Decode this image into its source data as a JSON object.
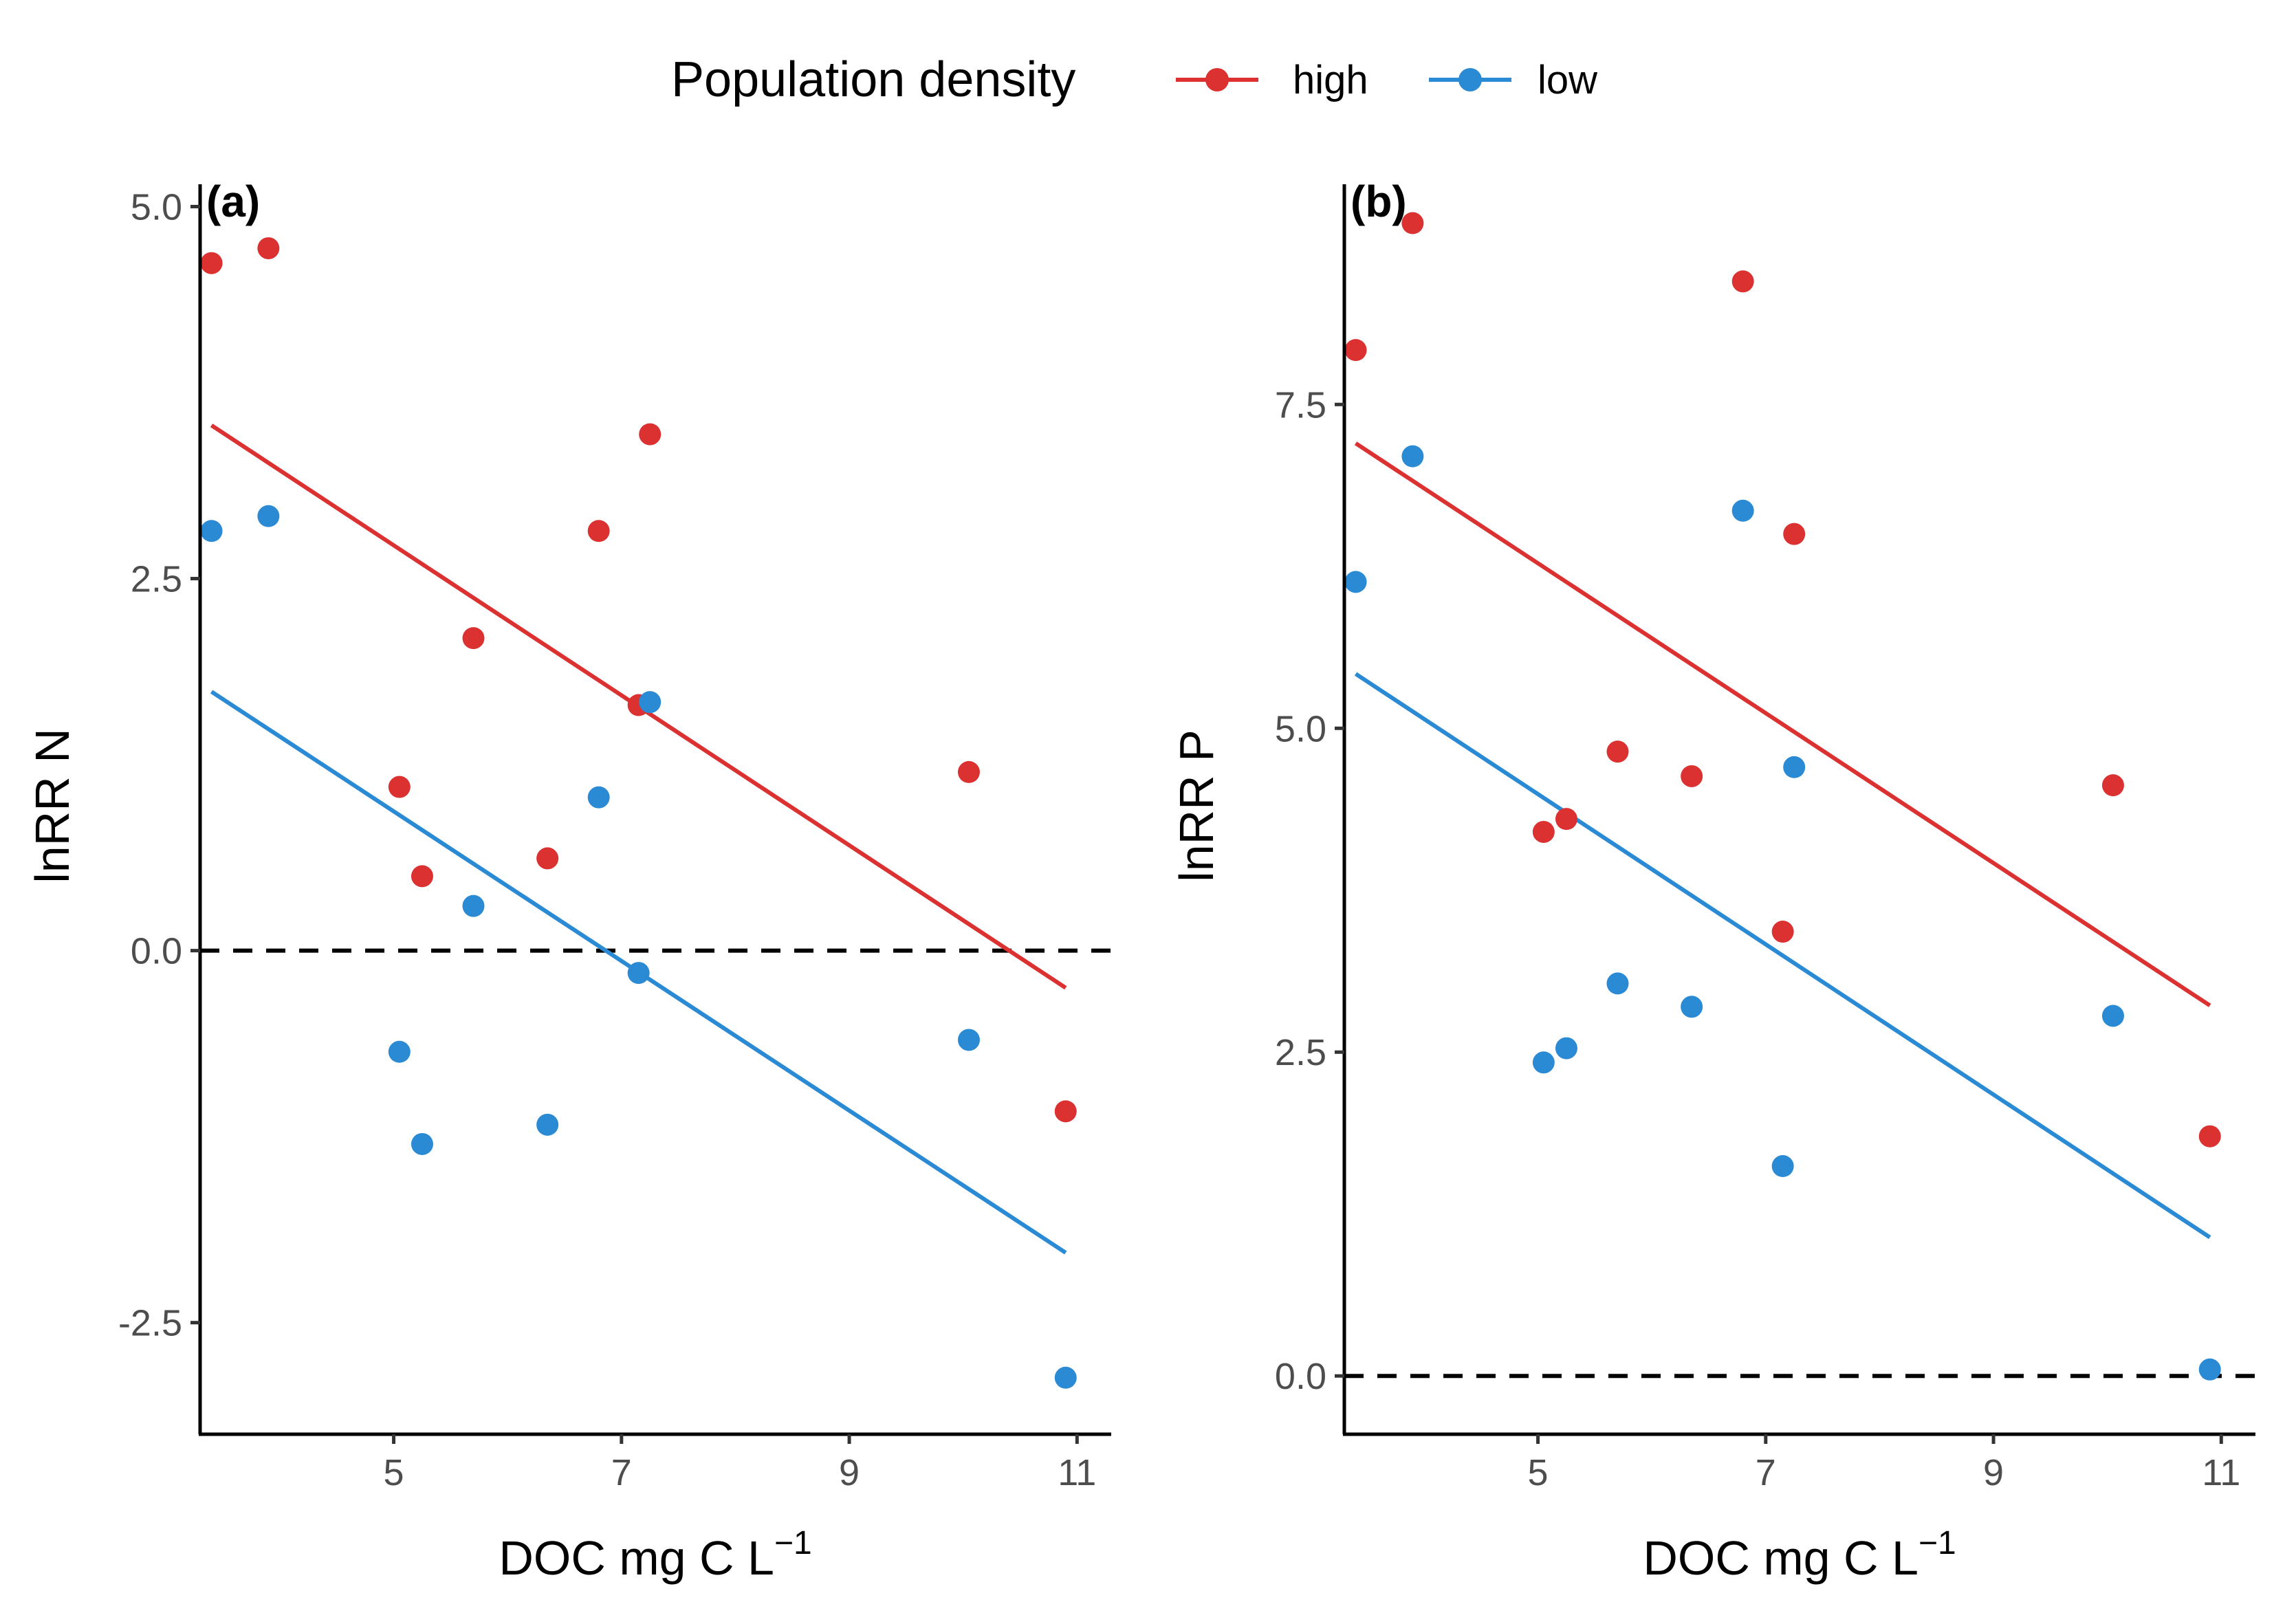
{
  "legend": {
    "title": "Population density",
    "entries": [
      {
        "label": "high",
        "color": "#dc3131"
      },
      {
        "label": "low",
        "color": "#2a8ad4"
      }
    ]
  },
  "colors": {
    "high": "#dc3131",
    "low": "#2a8ad4",
    "reference_line": "#000000"
  },
  "panels": [
    {
      "tag": "(a)",
      "xlabel_main": "DOC mg C L",
      "xlabel_sup": "−1",
      "ylabel": "lnRR N"
    },
    {
      "tag": "(b)",
      "xlabel_main": "DOC mg C L",
      "xlabel_sup": "−1",
      "ylabel": "lnRR P"
    }
  ],
  "chart_data": [
    {
      "type": "scatter",
      "panel": "(a)",
      "xlabel": "DOC mg C L⁻¹",
      "ylabel": "lnRR N",
      "xlim": [
        3.3,
        11.3
      ],
      "ylim": [
        -3.25,
        5.15
      ],
      "xticks": [
        5,
        7,
        9,
        11
      ],
      "xtick_labels": [
        "5",
        "7",
        "9",
        "11"
      ],
      "yticks": [
        -2.5,
        0,
        2.5,
        5
      ],
      "ytick_labels": [
        "-2.5",
        "0.0",
        "2.5",
        "5.0"
      ],
      "reference_line": {
        "y": 0,
        "style": "dashed"
      },
      "series": [
        {
          "name": "high",
          "color": "#dc3131",
          "points": [
            [
              3.4,
              4.62
            ],
            [
              3.9,
              4.72
            ],
            [
              5.05,
              1.1
            ],
            [
              5.25,
              0.5
            ],
            [
              5.7,
              2.1
            ],
            [
              6.35,
              0.62
            ],
            [
              6.8,
              2.82
            ],
            [
              7.15,
              1.65
            ],
            [
              7.25,
              3.47
            ],
            [
              10.05,
              1.2
            ],
            [
              10.9,
              -1.08
            ]
          ],
          "fit": [
            [
              3.4,
              3.53
            ],
            [
              10.9,
              -0.25
            ]
          ]
        },
        {
          "name": "low",
          "color": "#2a8ad4",
          "points": [
            [
              3.4,
              2.82
            ],
            [
              3.9,
              2.92
            ],
            [
              5.05,
              -0.68
            ],
            [
              5.25,
              -1.3
            ],
            [
              5.7,
              0.3
            ],
            [
              6.35,
              -1.17
            ],
            [
              6.8,
              1.03
            ],
            [
              7.15,
              -0.15
            ],
            [
              7.25,
              1.67
            ],
            [
              10.05,
              -0.6
            ],
            [
              10.9,
              -2.87
            ]
          ],
          "fit": [
            [
              3.4,
              1.74
            ],
            [
              10.9,
              -2.03
            ]
          ]
        }
      ]
    },
    {
      "type": "scatter",
      "panel": "(b)",
      "xlabel": "DOC mg C L⁻¹",
      "ylabel": "lnRR P",
      "xlim": [
        3.3,
        11.3
      ],
      "ylim": [
        -0.45,
        9.2
      ],
      "xticks": [
        5,
        7,
        9,
        11
      ],
      "xtick_labels": [
        "5",
        "7",
        "9",
        "11"
      ],
      "yticks": [
        0,
        2.5,
        5,
        7.5
      ],
      "ytick_labels": [
        "0.0",
        "2.5",
        "5.0",
        "7.5"
      ],
      "reference_line": {
        "y": 0,
        "style": "dashed"
      },
      "series": [
        {
          "name": "high",
          "color": "#dc3131",
          "points": [
            [
              3.4,
              7.92
            ],
            [
              3.9,
              8.9
            ],
            [
              5.05,
              4.2
            ],
            [
              5.25,
              4.3
            ],
            [
              5.7,
              4.82
            ],
            [
              6.35,
              4.63
            ],
            [
              6.8,
              8.45
            ],
            [
              7.15,
              3.43
            ],
            [
              7.25,
              6.5
            ],
            [
              10.05,
              4.56
            ],
            [
              10.9,
              1.85
            ]
          ],
          "fit": [
            [
              3.4,
              7.2
            ],
            [
              10.9,
              2.86
            ]
          ]
        },
        {
          "name": "low",
          "color": "#2a8ad4",
          "points": [
            [
              3.4,
              6.13
            ],
            [
              3.9,
              7.1
            ],
            [
              5.05,
              2.42
            ],
            [
              5.25,
              2.53
            ],
            [
              5.7,
              3.03
            ],
            [
              6.35,
              2.85
            ],
            [
              6.8,
              6.68
            ],
            [
              7.15,
              1.62
            ],
            [
              7.25,
              4.7
            ],
            [
              10.05,
              2.78
            ],
            [
              10.9,
              0.05
            ]
          ],
          "fit": [
            [
              3.4,
              5.42
            ],
            [
              10.9,
              1.07
            ]
          ]
        }
      ]
    }
  ]
}
